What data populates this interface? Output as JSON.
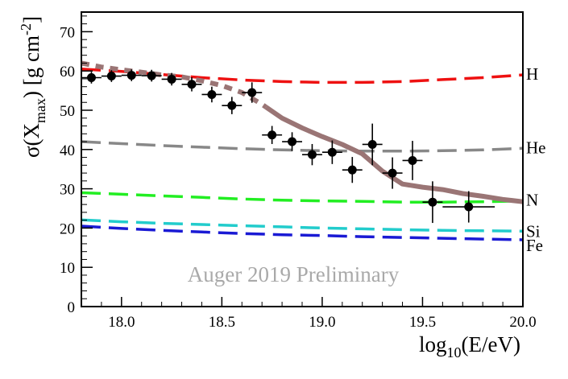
{
  "chart_data": {
    "type": "scatter",
    "title": "",
    "watermark": "Auger 2019 Preliminary",
    "xlabel": {
      "base": "log",
      "sub": "10",
      "rest": "(E/eV)"
    },
    "ylabel": {
      "pre": "σ(X",
      "sub": "max",
      "mid": ") [g cm",
      "sup": "-2",
      "post": "]"
    },
    "xlim": [
      17.8,
      20.0
    ],
    "ylim": [
      0,
      75
    ],
    "x_ticks": [
      18.0,
      18.5,
      19.0,
      19.5,
      20.0
    ],
    "x_tick_labels": [
      "18.0",
      "18.5",
      "19.0",
      "19.5",
      "20.0"
    ],
    "y_ticks": [
      0,
      10,
      20,
      30,
      40,
      50,
      60,
      70
    ],
    "y_tick_labels": [
      "0",
      "10",
      "20",
      "30",
      "40",
      "50",
      "60",
      "70"
    ],
    "x_minor_step": 0.1,
    "y_minor_step": 2,
    "data_series": {
      "name": "Auger data",
      "color": "#000000",
      "points": [
        {
          "x": 17.85,
          "y": 58.3,
          "xerr": 0.05,
          "yerr": 1.5
        },
        {
          "x": 17.95,
          "y": 58.7,
          "xerr": 0.05,
          "yerr": 1.5
        },
        {
          "x": 18.05,
          "y": 58.9,
          "xerr": 0.05,
          "yerr": 1.5
        },
        {
          "x": 18.15,
          "y": 58.8,
          "xerr": 0.05,
          "yerr": 1.5
        },
        {
          "x": 18.25,
          "y": 57.9,
          "xerr": 0.05,
          "yerr": 1.6
        },
        {
          "x": 18.35,
          "y": 56.6,
          "xerr": 0.05,
          "yerr": 1.8
        },
        {
          "x": 18.45,
          "y": 54.0,
          "xerr": 0.05,
          "yerr": 2.0
        },
        {
          "x": 18.55,
          "y": 51.2,
          "xerr": 0.05,
          "yerr": 2.2
        },
        {
          "x": 18.65,
          "y": 54.5,
          "xerr": 0.05,
          "yerr": 2.6
        },
        {
          "x": 18.75,
          "y": 43.7,
          "xerr": 0.05,
          "yerr": 2.3
        },
        {
          "x": 18.85,
          "y": 42.0,
          "xerr": 0.05,
          "yerr": 2.4
        },
        {
          "x": 18.95,
          "y": 38.7,
          "xerr": 0.05,
          "yerr": 2.7
        },
        {
          "x": 19.05,
          "y": 39.3,
          "xerr": 0.05,
          "yerr": 3.0
        },
        {
          "x": 19.15,
          "y": 34.8,
          "xerr": 0.05,
          "yerr": 3.3
        },
        {
          "x": 19.25,
          "y": 41.3,
          "xerr": 0.05,
          "yerr": 5.3
        },
        {
          "x": 19.35,
          "y": 34.0,
          "xerr": 0.05,
          "yerr": 4.0
        },
        {
          "x": 19.45,
          "y": 37.2,
          "xerr": 0.05,
          "yerr": 5.0
        },
        {
          "x": 19.55,
          "y": 26.6,
          "xerr": 0.05,
          "yerr": 5.3
        },
        {
          "x": 19.73,
          "y": 25.4,
          "xerr": 0.13,
          "yerr": 4.0
        }
      ]
    },
    "fit_curve": {
      "name": "fit",
      "color": "#9a7575",
      "x": [
        17.8,
        17.9,
        18.0,
        18.1,
        18.2,
        18.3,
        18.4,
        18.5,
        18.6,
        18.7,
        18.8,
        18.9,
        19.0,
        19.1,
        19.2,
        19.3,
        19.4,
        19.5,
        19.6,
        19.7,
        19.8,
        19.9,
        20.0
      ],
      "y": [
        62.0,
        61.0,
        60.3,
        59.7,
        59.0,
        58.5,
        57.5,
        56.3,
        54.5,
        51.5,
        48.0,
        45.5,
        43.3,
        41.3,
        38.9,
        34.5,
        31.2,
        30.4,
        29.8,
        28.8,
        28.1,
        27.3,
        26.7
      ],
      "dashed_until_x": 18.72
    },
    "model_lines": [
      {
        "label": "H",
        "color": "#ee1111",
        "x": [
          17.8,
          18.0,
          18.2,
          18.4,
          18.6,
          18.8,
          19.0,
          19.2,
          19.4,
          19.6,
          19.8,
          20.0
        ],
        "y": [
          60.5,
          59.9,
          59.1,
          58.3,
          57.7,
          57.3,
          57.1,
          57.1,
          57.3,
          57.8,
          58.3,
          59.0
        ]
      },
      {
        "label": "He",
        "color": "#888888",
        "x": [
          17.8,
          18.0,
          18.2,
          18.4,
          18.6,
          18.8,
          19.0,
          19.2,
          19.4,
          19.6,
          19.8,
          20.0
        ],
        "y": [
          42.0,
          41.5,
          41.0,
          40.6,
          40.2,
          39.9,
          39.7,
          39.6,
          39.6,
          39.7,
          39.9,
          40.3
        ]
      },
      {
        "label": "N",
        "color": "#22ee22",
        "x": [
          17.8,
          18.0,
          18.2,
          18.4,
          18.6,
          18.8,
          19.0,
          19.2,
          19.4,
          19.6,
          19.8,
          20.0
        ],
        "y": [
          29.0,
          28.6,
          28.2,
          27.8,
          27.4,
          27.1,
          26.9,
          26.8,
          26.6,
          26.6,
          26.7,
          26.9
        ]
      },
      {
        "label": "Si",
        "color": "#22cccc",
        "x": [
          17.8,
          18.0,
          18.2,
          18.4,
          18.6,
          18.8,
          19.0,
          19.2,
          19.4,
          19.6,
          19.8,
          20.0
        ],
        "y": [
          22.1,
          21.6,
          21.2,
          20.9,
          20.6,
          20.3,
          20.0,
          19.8,
          19.6,
          19.4,
          19.3,
          19.2
        ]
      },
      {
        "label": "Fe",
        "color": "#1a1ad4",
        "x": [
          17.8,
          18.0,
          18.2,
          18.4,
          18.6,
          18.8,
          19.0,
          19.2,
          19.4,
          19.6,
          19.8,
          20.0
        ],
        "y": [
          20.5,
          19.9,
          19.4,
          19.0,
          18.6,
          18.3,
          18.1,
          17.8,
          17.6,
          17.4,
          17.2,
          17.0
        ]
      }
    ],
    "legend": "none"
  }
}
